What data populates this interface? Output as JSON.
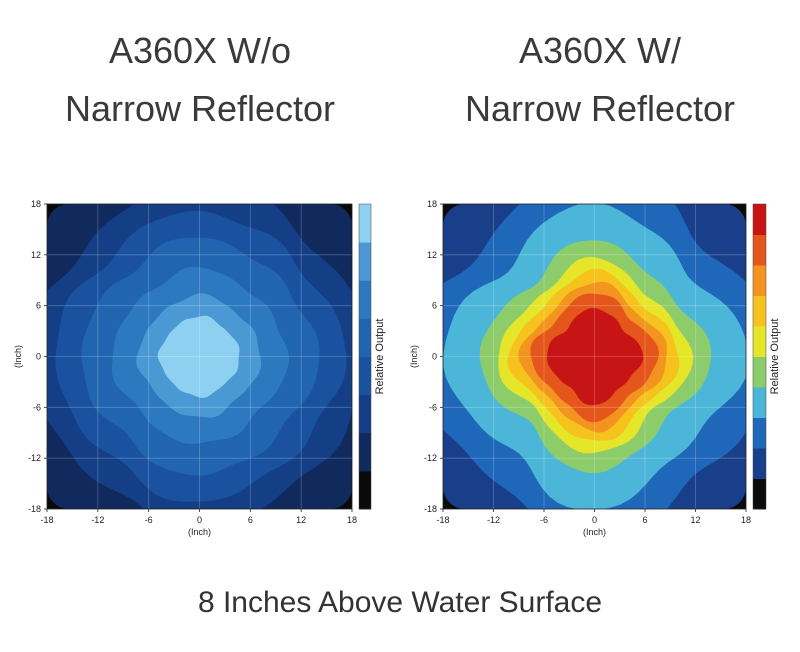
{
  "caption": "8 Inches Above Water Surface",
  "chart_data": [
    {
      "type": "heatmap",
      "title_line1": "A360X W/o",
      "title_line2": "Narrow Reflector",
      "xlabel": "(Inch)",
      "ylabel": "(Inch)",
      "colorbar_label": "Relative Output",
      "xlim": [
        -18,
        18
      ],
      "ylim": [
        -18,
        18
      ],
      "ticks": [
        -18,
        -12,
        -6,
        0,
        6,
        12,
        18
      ],
      "colors": [
        "#0a0a0a",
        "#102a5e",
        "#143f86",
        "#1a52a0",
        "#2164b0",
        "#2d79c0",
        "#4a98d4",
        "#8ed0ef"
      ],
      "levels": [
        {
          "level": 2,
          "radius": 19.5
        },
        {
          "level": 3,
          "radius": 16.5
        },
        {
          "level": 4,
          "radius": 13.5
        },
        {
          "level": 5,
          "radius": 10.0
        },
        {
          "level": 6,
          "radius": 7.0
        },
        {
          "level": 7,
          "radius": 4.6
        }
      ],
      "lobe": 0.04,
      "grid": true
    },
    {
      "type": "heatmap",
      "title_line1": "A360X W/",
      "title_line2": "Narrow Reflector",
      "xlabel": "(Inch)",
      "ylabel": "(Inch)",
      "colorbar_label": "Relative Output",
      "xlim": [
        -18,
        18
      ],
      "ylim": [
        -18,
        18
      ],
      "ticks": [
        -18,
        -12,
        -6,
        0,
        6,
        12,
        18
      ],
      "colors": [
        "#0b0b0b",
        "#1a3f8a",
        "#1f67b8",
        "#4cb6d8",
        "#8dcc6a",
        "#e5e52a",
        "#f6c21e",
        "#f39420",
        "#e5561c",
        "#c71414"
      ],
      "levels": [
        {
          "level": 2,
          "radius": 20.5
        },
        {
          "level": 3,
          "radius": 16.5
        },
        {
          "level": 4,
          "radius": 12.5
        },
        {
          "level": 5,
          "radius": 10.5
        },
        {
          "level": 6,
          "radius": 9.2
        },
        {
          "level": 7,
          "radius": 8.0
        },
        {
          "level": 8,
          "radius": 6.9
        },
        {
          "level": 9,
          "radius": 5.2
        }
      ],
      "lobe": 0.1,
      "grid": true
    }
  ]
}
